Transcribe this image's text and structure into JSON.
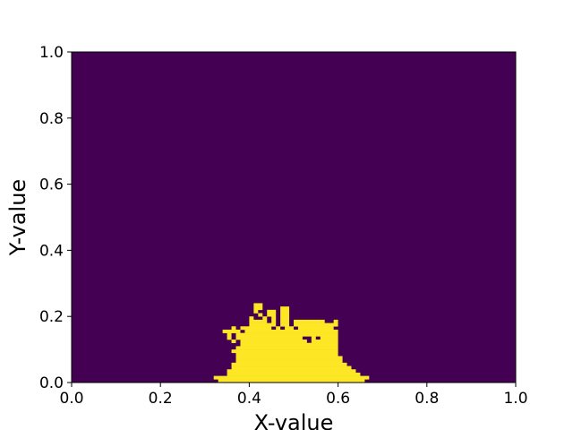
{
  "colors": {
    "background_cell": "#440154",
    "filled_cell": "#fde725",
    "axis": "#000000"
  },
  "chart_data": {
    "type": "heatmap",
    "title": "",
    "xlabel": "X-value",
    "ylabel": "Y-value",
    "xlim": [
      0.0,
      1.0
    ],
    "ylim": [
      0.0,
      1.0
    ],
    "xticks": [
      "0.0",
      "0.2",
      "0.4",
      "0.6",
      "0.8",
      "1.0"
    ],
    "yticks": [
      "0.0",
      "0.2",
      "0.4",
      "0.6",
      "0.8",
      "1.0"
    ],
    "grid": false,
    "legend": "none",
    "colormap": "viridis",
    "values": [
      0,
      1
    ],
    "background_value": 0,
    "grid_size": 100,
    "filled_region_rows": [
      {
        "y": 0.0,
        "runs": [
          [
            0.33,
            0.66
          ]
        ]
      },
      {
        "y": 0.01,
        "runs": [
          [
            0.32,
            0.67
          ]
        ]
      },
      {
        "y": 0.02,
        "runs": [
          [
            0.35,
            0.65
          ]
        ]
      },
      {
        "y": 0.03,
        "runs": [
          [
            0.35,
            0.64
          ]
        ]
      },
      {
        "y": 0.04,
        "runs": [
          [
            0.36,
            0.63
          ]
        ]
      },
      {
        "y": 0.05,
        "runs": [
          [
            0.36,
            0.62
          ]
        ]
      },
      {
        "y": 0.06,
        "runs": [
          [
            0.37,
            0.61
          ]
        ]
      },
      {
        "y": 0.07,
        "runs": [
          [
            0.37,
            0.61
          ]
        ]
      },
      {
        "y": 0.08,
        "runs": [
          [
            0.37,
            0.6
          ]
        ]
      },
      {
        "y": 0.09,
        "runs": [
          [
            0.36,
            0.6
          ]
        ]
      },
      {
        "y": 0.1,
        "runs": [
          [
            0.37,
            0.6
          ]
        ]
      },
      {
        "y": 0.11,
        "runs": [
          [
            0.38,
            0.6
          ]
        ]
      },
      {
        "y": 0.12,
        "runs": [
          [
            0.36,
            0.37
          ],
          [
            0.38,
            0.53
          ],
          [
            0.54,
            0.6
          ]
        ]
      },
      {
        "y": 0.13,
        "runs": [
          [
            0.35,
            0.36
          ],
          [
            0.37,
            0.52
          ],
          [
            0.54,
            0.55
          ],
          [
            0.56,
            0.6
          ]
        ]
      },
      {
        "y": 0.14,
        "runs": [
          [
            0.35,
            0.36
          ],
          [
            0.37,
            0.6
          ]
        ]
      },
      {
        "y": 0.15,
        "runs": [
          [
            0.34,
            0.38
          ],
          [
            0.39,
            0.6
          ]
        ]
      },
      {
        "y": 0.16,
        "runs": [
          [
            0.36,
            0.37
          ],
          [
            0.38,
            0.45
          ],
          [
            0.46,
            0.47
          ],
          [
            0.48,
            0.5
          ],
          [
            0.51,
            0.59
          ]
        ]
      },
      {
        "y": 0.17,
        "runs": [
          [
            0.4,
            0.46
          ],
          [
            0.47,
            0.49
          ],
          [
            0.5,
            0.6
          ]
        ]
      },
      {
        "y": 0.18,
        "runs": [
          [
            0.4,
            0.44
          ],
          [
            0.45,
            0.46
          ],
          [
            0.47,
            0.49
          ],
          [
            0.5,
            0.57
          ],
          [
            0.59,
            0.6
          ]
        ]
      },
      {
        "y": 0.19,
        "runs": [
          [
            0.4,
            0.41
          ],
          [
            0.43,
            0.44
          ],
          [
            0.45,
            0.46
          ],
          [
            0.47,
            0.49
          ]
        ]
      },
      {
        "y": 0.2,
        "runs": [
          [
            0.42,
            0.43
          ],
          [
            0.44,
            0.46
          ],
          [
            0.47,
            0.49
          ]
        ]
      },
      {
        "y": 0.21,
        "runs": [
          [
            0.41,
            0.42
          ],
          [
            0.44,
            0.46
          ],
          [
            0.47,
            0.49
          ]
        ]
      },
      {
        "y": 0.22,
        "runs": [
          [
            0.41,
            0.43
          ],
          [
            0.47,
            0.49
          ]
        ]
      },
      {
        "y": 0.23,
        "runs": [
          [
            0.41,
            0.43
          ]
        ]
      }
    ]
  }
}
